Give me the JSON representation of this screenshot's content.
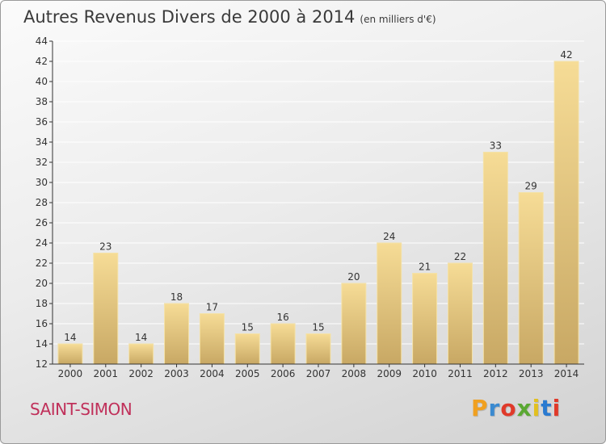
{
  "header": {
    "title": "Autres Revenus Divers de 2000 à 2014",
    "unit": "(en milliers d'€)"
  },
  "footer": {
    "commune": "SAINT-SIMON",
    "logo_letters": [
      "P",
      "r",
      "o",
      "x",
      "i",
      "t",
      "i"
    ],
    "logo_colors": [
      "#f0a020",
      "#3a8ad0",
      "#e03a2a",
      "#5aa832",
      "#e2c020",
      "#2a7ad0",
      "#e03a2a"
    ]
  },
  "colors": {
    "bar_light": "#f6dc96",
    "bar_dark": "#c8a864",
    "axis": "#333333",
    "grid": "#ffffff",
    "text": "#333333"
  },
  "chart_data": {
    "type": "bar",
    "categories": [
      "2000",
      "2001",
      "2002",
      "2003",
      "2004",
      "2005",
      "2006",
      "2007",
      "2008",
      "2009",
      "2010",
      "2011",
      "2012",
      "2013",
      "2014"
    ],
    "values": [
      14,
      23,
      14,
      18,
      17,
      15,
      16,
      15,
      20,
      24,
      21,
      22,
      33,
      29,
      42
    ],
    "ylim": [
      12,
      44
    ],
    "yticks": [
      12,
      14,
      16,
      18,
      20,
      22,
      24,
      26,
      28,
      30,
      32,
      34,
      36,
      38,
      40,
      42,
      44
    ],
    "grid": true,
    "data_labels": true
  }
}
